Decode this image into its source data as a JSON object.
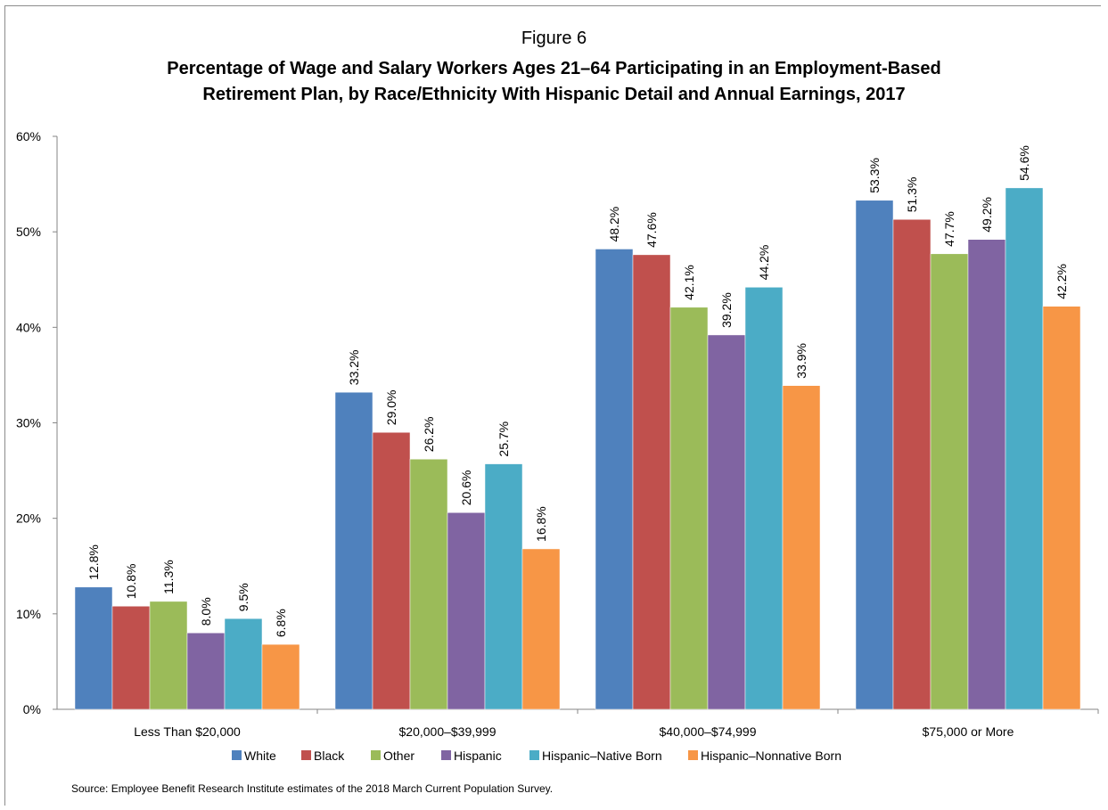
{
  "figure_label": "Figure 6",
  "title_line1": "Percentage of Wage and Salary Workers Ages 21–64 Participating in an Employment-Based",
  "title_line2": "Retirement Plan, by Race/Ethnicity With Hispanic Detail and Annual Earnings, 2017",
  "source": "Source: Employee Benefit Research Institute estimates of the 2018 March Current Population Survey.",
  "chart_data": {
    "type": "bar",
    "categories": [
      "Less Than $20,000",
      "$20,000–$39,999",
      "$40,000–$74,999",
      "$75,000 or More"
    ],
    "series": [
      {
        "name": "White",
        "color": "#4f81bd",
        "values": [
          12.8,
          33.2,
          48.2,
          53.3
        ],
        "labels": [
          "12.8%",
          "33.2%",
          "48.2%",
          "53.3%"
        ]
      },
      {
        "name": "Black",
        "color": "#c0504d",
        "values": [
          10.8,
          29.0,
          47.6,
          51.3
        ],
        "labels": [
          "10.8%",
          "29.0%",
          "47.6%",
          "51.3%"
        ]
      },
      {
        "name": "Other",
        "color": "#9bbb59",
        "values": [
          11.3,
          26.2,
          42.1,
          47.7
        ],
        "labels": [
          "11.3%",
          "26.2%",
          "42.1%",
          "47.7%"
        ]
      },
      {
        "name": "Hispanic",
        "color": "#8064a2",
        "values": [
          8.0,
          20.6,
          39.2,
          49.2
        ],
        "labels": [
          "8.0%",
          "20.6%",
          "39.2%",
          "49.2%"
        ]
      },
      {
        "name": "Hispanic–Native Born",
        "color": "#4bacc6",
        "values": [
          9.5,
          25.7,
          44.2,
          54.6
        ],
        "labels": [
          "9.5%",
          "25.7%",
          "44.2%",
          "54.6%"
        ]
      },
      {
        "name": "Hispanic–Nonnative Born",
        "color": "#f79646",
        "values": [
          6.8,
          16.8,
          33.9,
          42.2
        ],
        "labels": [
          "6.8%",
          "16.8%",
          "33.9%",
          "42.2%"
        ]
      }
    ],
    "ylim": [
      0,
      60
    ],
    "yticks": [
      0,
      10,
      20,
      30,
      40,
      50,
      60
    ],
    "ytick_labels": [
      "0%",
      "10%",
      "20%",
      "30%",
      "40%",
      "50%",
      "60%"
    ],
    "xlabel": "",
    "ylabel": "",
    "grid": false,
    "legend_position": "bottom"
  }
}
